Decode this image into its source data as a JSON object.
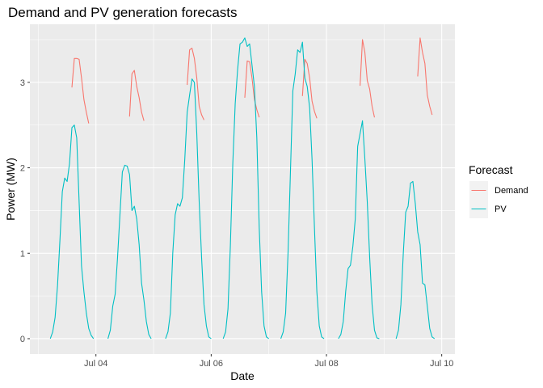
{
  "chart_data": {
    "type": "line",
    "title": "Demand and PV generation forecasts",
    "xlabel": "Date",
    "ylabel": "Power (MW)",
    "x_axis": {
      "type": "date",
      "range": [
        "2024-07-02T20:30",
        "2024-07-10T05:30"
      ],
      "ticks": [
        {
          "label": "Jul 04",
          "value": "2024-07-04T00:00"
        },
        {
          "label": "Jul 06",
          "value": "2024-07-06T00:00"
        },
        {
          "label": "Jul 08",
          "value": "2024-07-08T00:00"
        },
        {
          "label": "Jul 10",
          "value": "2024-07-10T00:00"
        }
      ]
    },
    "y_axis": {
      "range": [
        -0.18,
        3.68
      ],
      "ticks": [
        0,
        1,
        2,
        3
      ]
    },
    "grid": true,
    "legend": {
      "title": "Forecast",
      "position": "right"
    },
    "series": [
      {
        "name": "Demand",
        "color": "#F8766D",
        "points": [
          [
            "2024-07-03T14:00",
            2.94
          ],
          [
            "2024-07-03T15:00",
            3.28
          ],
          [
            "2024-07-03T16:00",
            3.28
          ],
          [
            "2024-07-03T17:00",
            3.27
          ],
          [
            "2024-07-03T18:00",
            3.05
          ],
          [
            "2024-07-03T19:00",
            2.8
          ],
          [
            "2024-07-03T20:00",
            2.65
          ],
          [
            "2024-07-03T21:00",
            2.52
          ],
          [
            "2024-07-04T14:00",
            2.6
          ],
          [
            "2024-07-04T15:00",
            3.1
          ],
          [
            "2024-07-04T16:00",
            3.14
          ],
          [
            "2024-07-04T17:00",
            2.95
          ],
          [
            "2024-07-04T18:00",
            2.82
          ],
          [
            "2024-07-04T19:00",
            2.65
          ],
          [
            "2024-07-04T20:00",
            2.55
          ],
          [
            "2024-07-05T14:00",
            2.97
          ],
          [
            "2024-07-05T15:00",
            3.38
          ],
          [
            "2024-07-05T16:00",
            3.4
          ],
          [
            "2024-07-05T17:00",
            3.28
          ],
          [
            "2024-07-05T18:00",
            3.05
          ],
          [
            "2024-07-05T19:00",
            2.72
          ],
          [
            "2024-07-05T20:00",
            2.62
          ],
          [
            "2024-07-05T21:00",
            2.56
          ],
          [
            "2024-07-06T14:00",
            2.82
          ],
          [
            "2024-07-06T15:00",
            3.25
          ],
          [
            "2024-07-06T16:00",
            3.24
          ],
          [
            "2024-07-06T17:00",
            3.05
          ],
          [
            "2024-07-06T18:00",
            2.8
          ],
          [
            "2024-07-06T19:00",
            2.68
          ],
          [
            "2024-07-06T20:00",
            2.59
          ],
          [
            "2024-07-07T14:00",
            2.84
          ],
          [
            "2024-07-07T15:00",
            3.27
          ],
          [
            "2024-07-07T16:00",
            3.22
          ],
          [
            "2024-07-07T17:00",
            3.05
          ],
          [
            "2024-07-07T18:00",
            2.78
          ],
          [
            "2024-07-07T19:00",
            2.66
          ],
          [
            "2024-07-07T20:00",
            2.58
          ],
          [
            "2024-07-08T14:00",
            2.96
          ],
          [
            "2024-07-08T15:00",
            3.5
          ],
          [
            "2024-07-08T16:00",
            3.35
          ],
          [
            "2024-07-08T17:00",
            3.02
          ],
          [
            "2024-07-08T18:00",
            2.92
          ],
          [
            "2024-07-08T19:00",
            2.72
          ],
          [
            "2024-07-08T20:00",
            2.59
          ],
          [
            "2024-07-09T14:00",
            3.07
          ],
          [
            "2024-07-09T15:00",
            3.52
          ],
          [
            "2024-07-09T16:00",
            3.35
          ],
          [
            "2024-07-09T17:00",
            3.22
          ],
          [
            "2024-07-09T18:00",
            2.85
          ],
          [
            "2024-07-09T19:00",
            2.72
          ],
          [
            "2024-07-09T20:00",
            2.62
          ]
        ]
      },
      {
        "name": "PV",
        "color": "#00BFC4",
        "points": [
          [
            "2024-07-03T00:00",
            0
          ],
          [
            "2024-07-03T05:00",
            0
          ],
          [
            "2024-07-03T06:00",
            0.08
          ],
          [
            "2024-07-03T07:00",
            0.25
          ],
          [
            "2024-07-03T08:00",
            0.62
          ],
          [
            "2024-07-03T09:00",
            1.15
          ],
          [
            "2024-07-03T10:00",
            1.72
          ],
          [
            "2024-07-03T11:00",
            1.88
          ],
          [
            "2024-07-03T12:00",
            1.84
          ],
          [
            "2024-07-03T13:00",
            2.05
          ],
          [
            "2024-07-03T14:00",
            2.47
          ],
          [
            "2024-07-03T15:00",
            2.5
          ],
          [
            "2024-07-03T16:00",
            2.35
          ],
          [
            "2024-07-03T17:00",
            1.6
          ],
          [
            "2024-07-03T18:00",
            0.85
          ],
          [
            "2024-07-03T19:00",
            0.55
          ],
          [
            "2024-07-03T20:00",
            0.3
          ],
          [
            "2024-07-03T21:00",
            0.12
          ],
          [
            "2024-07-03T22:00",
            0.04
          ],
          [
            "2024-07-03T23:00",
            0
          ],
          [
            "2024-07-04T05:00",
            0
          ],
          [
            "2024-07-04T06:00",
            0.1
          ],
          [
            "2024-07-04T07:00",
            0.38
          ],
          [
            "2024-07-04T08:00",
            0.52
          ],
          [
            "2024-07-04T09:00",
            0.95
          ],
          [
            "2024-07-04T10:00",
            1.45
          ],
          [
            "2024-07-04T11:00",
            1.95
          ],
          [
            "2024-07-04T12:00",
            2.03
          ],
          [
            "2024-07-04T13:00",
            2.02
          ],
          [
            "2024-07-04T14:00",
            1.92
          ],
          [
            "2024-07-04T15:00",
            1.5
          ],
          [
            "2024-07-04T16:00",
            1.55
          ],
          [
            "2024-07-04T17:00",
            1.4
          ],
          [
            "2024-07-04T18:00",
            1.1
          ],
          [
            "2024-07-04T19:00",
            0.65
          ],
          [
            "2024-07-04T20:00",
            0.45
          ],
          [
            "2024-07-04T21:00",
            0.2
          ],
          [
            "2024-07-04T22:00",
            0.05
          ],
          [
            "2024-07-04T23:00",
            0
          ],
          [
            "2024-07-05T05:00",
            0
          ],
          [
            "2024-07-05T06:00",
            0.08
          ],
          [
            "2024-07-05T07:00",
            0.3
          ],
          [
            "2024-07-05T08:00",
            1.0
          ],
          [
            "2024-07-05T09:00",
            1.45
          ],
          [
            "2024-07-05T10:00",
            1.58
          ],
          [
            "2024-07-05T11:00",
            1.55
          ],
          [
            "2024-07-05T12:00",
            1.65
          ],
          [
            "2024-07-05T13:00",
            2.1
          ],
          [
            "2024-07-05T14:00",
            2.65
          ],
          [
            "2024-07-05T15:00",
            2.85
          ],
          [
            "2024-07-05T16:00",
            3.04
          ],
          [
            "2024-07-05T17:00",
            3.0
          ],
          [
            "2024-07-05T18:00",
            2.4
          ],
          [
            "2024-07-05T19:00",
            1.6
          ],
          [
            "2024-07-05T20:00",
            0.95
          ],
          [
            "2024-07-05T21:00",
            0.4
          ],
          [
            "2024-07-05T22:00",
            0.15
          ],
          [
            "2024-07-05T23:00",
            0.02
          ],
          [
            "2024-07-06T00:00",
            0
          ],
          [
            "2024-07-06T05:00",
            0
          ],
          [
            "2024-07-06T06:00",
            0.08
          ],
          [
            "2024-07-06T07:00",
            0.35
          ],
          [
            "2024-07-06T08:00",
            1.1
          ],
          [
            "2024-07-06T09:00",
            2.05
          ],
          [
            "2024-07-06T10:00",
            2.75
          ],
          [
            "2024-07-06T11:00",
            3.15
          ],
          [
            "2024-07-06T12:00",
            3.45
          ],
          [
            "2024-07-06T13:00",
            3.47
          ],
          [
            "2024-07-06T14:00",
            3.52
          ],
          [
            "2024-07-06T15:00",
            3.42
          ],
          [
            "2024-07-06T16:00",
            3.45
          ],
          [
            "2024-07-06T17:00",
            3.2
          ],
          [
            "2024-07-06T18:00",
            2.95
          ],
          [
            "2024-07-06T19:00",
            2.35
          ],
          [
            "2024-07-06T20:00",
            1.3
          ],
          [
            "2024-07-06T21:00",
            0.55
          ],
          [
            "2024-07-06T22:00",
            0.15
          ],
          [
            "2024-07-06T23:00",
            0.02
          ],
          [
            "2024-07-07T00:00",
            0
          ],
          [
            "2024-07-07T05:00",
            0
          ],
          [
            "2024-07-07T06:00",
            0.08
          ],
          [
            "2024-07-07T07:00",
            0.3
          ],
          [
            "2024-07-07T08:00",
            1.0
          ],
          [
            "2024-07-07T09:00",
            1.95
          ],
          [
            "2024-07-07T10:00",
            2.9
          ],
          [
            "2024-07-07T11:00",
            3.1
          ],
          [
            "2024-07-07T12:00",
            3.38
          ],
          [
            "2024-07-07T13:00",
            3.35
          ],
          [
            "2024-07-07T14:00",
            3.47
          ],
          [
            "2024-07-07T15:00",
            3.05
          ],
          [
            "2024-07-07T16:00",
            2.95
          ],
          [
            "2024-07-07T17:00",
            2.7
          ],
          [
            "2024-07-07T18:00",
            2.1
          ],
          [
            "2024-07-07T19:00",
            1.3
          ],
          [
            "2024-07-07T20:00",
            0.55
          ],
          [
            "2024-07-07T21:00",
            0.15
          ],
          [
            "2024-07-07T22:00",
            0.02
          ],
          [
            "2024-07-07T23:00",
            0
          ],
          [
            "2024-07-08T05:00",
            0
          ],
          [
            "2024-07-08T06:00",
            0.05
          ],
          [
            "2024-07-08T07:00",
            0.2
          ],
          [
            "2024-07-08T08:00",
            0.55
          ],
          [
            "2024-07-08T09:00",
            0.82
          ],
          [
            "2024-07-08T10:00",
            0.86
          ],
          [
            "2024-07-08T11:00",
            1.08
          ],
          [
            "2024-07-08T12:00",
            1.4
          ],
          [
            "2024-07-08T13:00",
            2.25
          ],
          [
            "2024-07-08T14:00",
            2.4
          ],
          [
            "2024-07-08T15:00",
            2.55
          ],
          [
            "2024-07-08T16:00",
            2.1
          ],
          [
            "2024-07-08T17:00",
            1.6
          ],
          [
            "2024-07-08T18:00",
            0.95
          ],
          [
            "2024-07-08T19:00",
            0.4
          ],
          [
            "2024-07-08T20:00",
            0.1
          ],
          [
            "2024-07-08T21:00",
            0.01
          ],
          [
            "2024-07-08T22:00",
            0
          ],
          [
            "2024-07-09T05:00",
            0
          ],
          [
            "2024-07-09T06:00",
            0.1
          ],
          [
            "2024-07-09T07:00",
            0.4
          ],
          [
            "2024-07-09T08:00",
            1.0
          ],
          [
            "2024-07-09T09:00",
            1.48
          ],
          [
            "2024-07-09T10:00",
            1.55
          ],
          [
            "2024-07-09T11:00",
            1.82
          ],
          [
            "2024-07-09T12:00",
            1.84
          ],
          [
            "2024-07-09T13:00",
            1.58
          ],
          [
            "2024-07-09T14:00",
            1.25
          ],
          [
            "2024-07-09T15:00",
            1.1
          ],
          [
            "2024-07-09T16:00",
            0.65
          ],
          [
            "2024-07-09T17:00",
            0.63
          ],
          [
            "2024-07-09T18:00",
            0.38
          ],
          [
            "2024-07-09T19:00",
            0.12
          ],
          [
            "2024-07-09T20:00",
            0.02
          ],
          [
            "2024-07-09T21:00",
            0
          ],
          [
            "2024-07-10T00:00",
            0
          ]
        ]
      }
    ]
  }
}
